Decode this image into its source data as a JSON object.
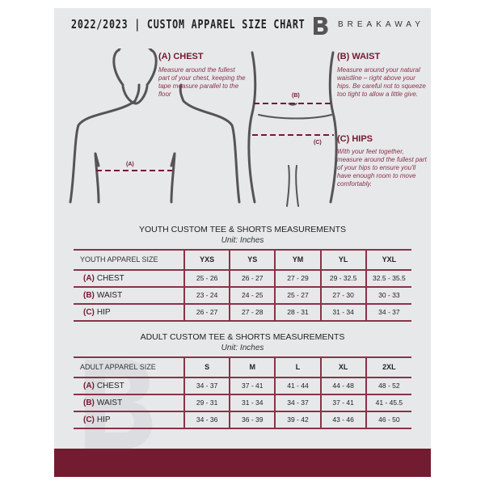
{
  "header": {
    "title": "2022/2023 | CUSTOM APPAREL SIZE CHART",
    "brand": "BREAKAWAY"
  },
  "colors": {
    "accent": "#731b30",
    "panel": "#e7e8ea"
  },
  "guides": [
    {
      "heading": "(A) CHEST",
      "text": "Measure around the fullest part of your chest, keeping the tape measure parallel to the floor",
      "marker": "(A)"
    },
    {
      "heading": "(B) WAIST",
      "text": "Measure around your natural waistline – right above your hips. Be careful not to squeeze too tight to allow a little give.",
      "marker": "(B)"
    },
    {
      "heading": "(C) HIPS",
      "text": "With your feet together, measure around the fullest part of your hips to ensure you'll have enough room to move comfortably.",
      "marker": "(C)"
    }
  ],
  "youth": {
    "title": "YOUTH CUSTOM TEE & SHORTS MEASUREMENTS",
    "unit": "Unit: Inches",
    "header": [
      "YOUTH APPAREL SIZE",
      "YXS",
      "YS",
      "YM",
      "YL",
      "YXL"
    ],
    "rows": [
      {
        "letter": "(A)",
        "name": "CHEST",
        "values": [
          "25 - 26",
          "26 - 27",
          "27 - 29",
          "29 - 32.5",
          "32.5 - 35.5"
        ]
      },
      {
        "letter": "(B)",
        "name": "WAIST",
        "values": [
          "23 - 24",
          "24 - 25",
          "25 - 27",
          "27 - 30",
          "30 - 33"
        ]
      },
      {
        "letter": "(C)",
        "name": "HIP",
        "values": [
          "26 - 27",
          "27 - 28",
          "28 - 31",
          "31 - 34",
          "34 - 37"
        ]
      }
    ]
  },
  "adult": {
    "title": "ADULT CUSTOM TEE & SHORTS MEASUREMENTS",
    "unit": "Unit: Inches",
    "header": [
      "ADULT APPAREL SIZE",
      "S",
      "M",
      "L",
      "XL",
      "2XL"
    ],
    "rows": [
      {
        "letter": "(A)",
        "name": "CHEST",
        "values": [
          "34 - 37",
          "37 - 41",
          "41 - 44",
          "44 - 48",
          "48 - 52"
        ]
      },
      {
        "letter": "(B)",
        "name": "WAIST",
        "values": [
          "29 - 31",
          "31 - 34",
          "34 - 37",
          "37 - 41",
          "41 - 45.5"
        ]
      },
      {
        "letter": "(C)",
        "name": "HIP",
        "values": [
          "34 - 36",
          "36 - 39",
          "39 - 42",
          "43 - 46",
          "46 - 50"
        ]
      }
    ]
  }
}
